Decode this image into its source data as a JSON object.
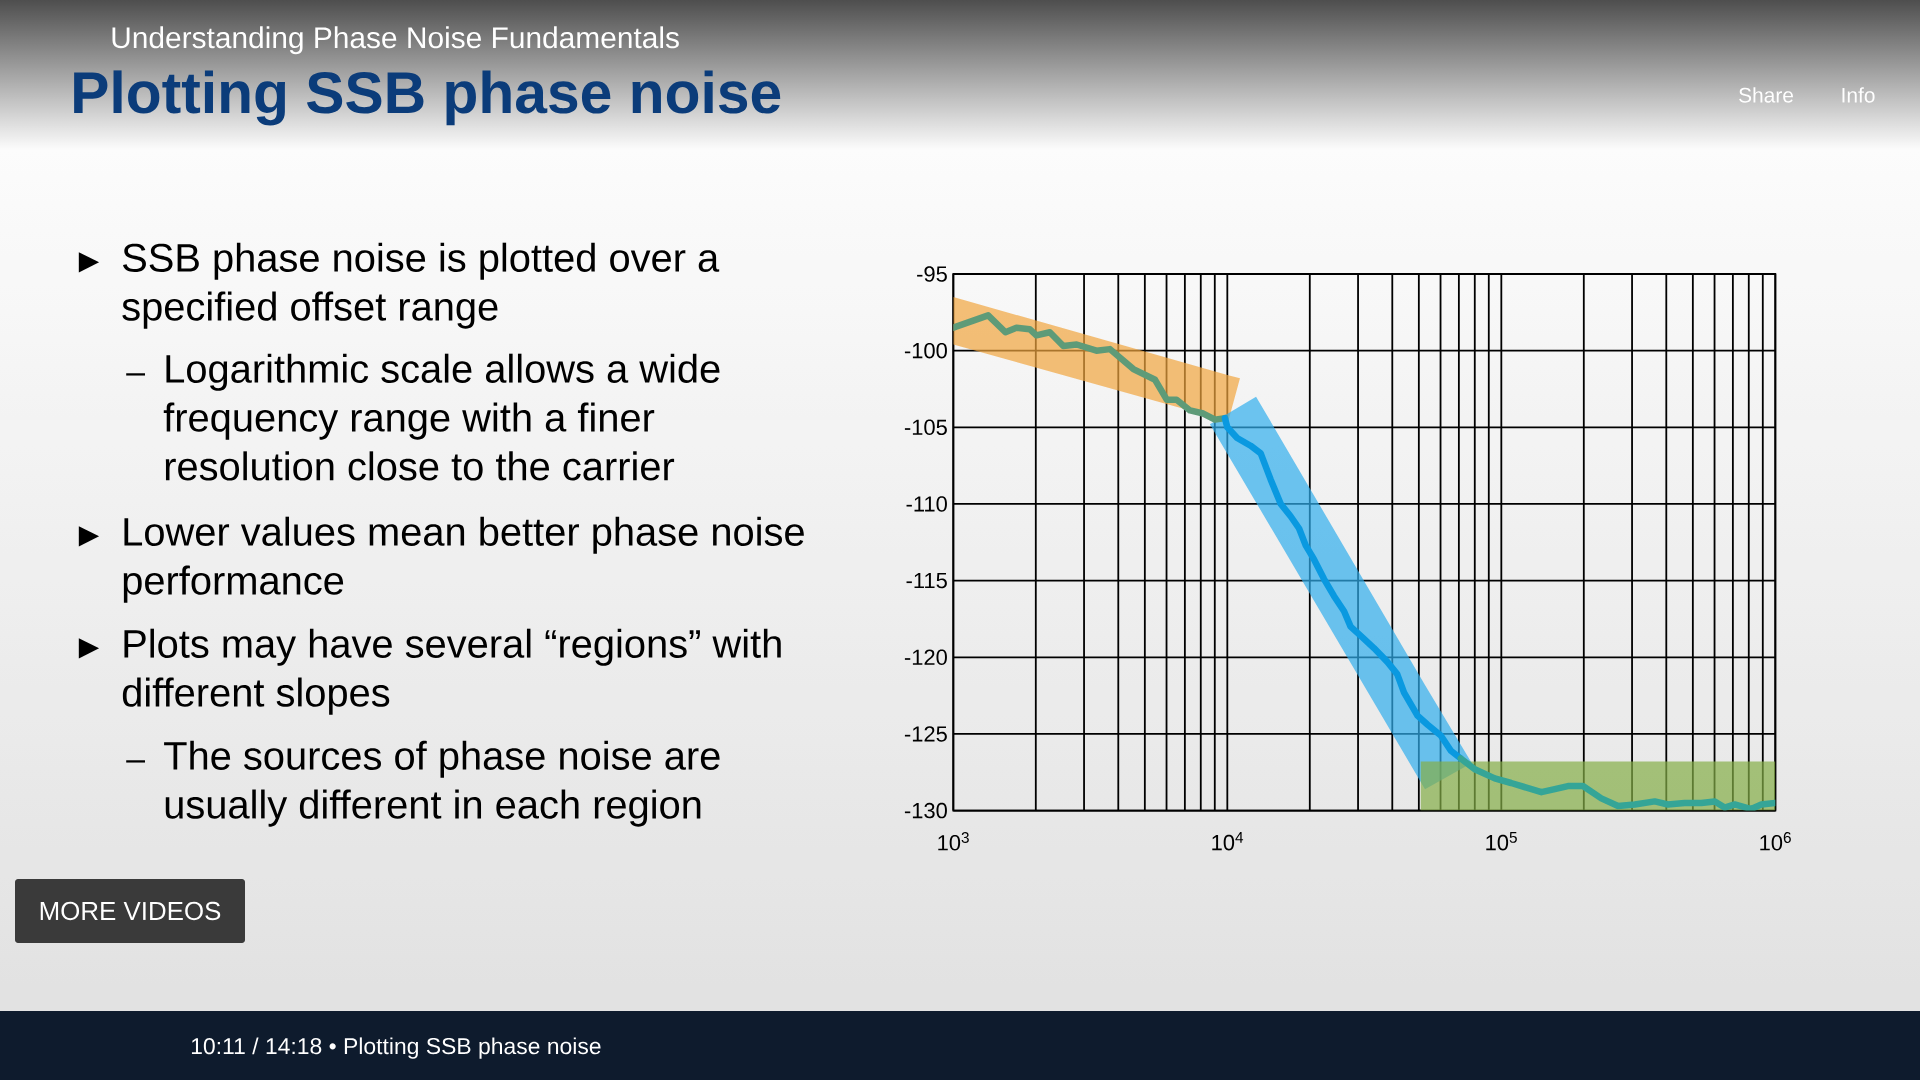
{
  "chart_data": {
    "type": "line",
    "title": "Plotting SSB phase noise",
    "subtitle": "Understanding Phase Noise Fundamentals",
    "annotations": [
      "►",
      "SSB phase noise is plotted over a specified offset range",
      "–",
      "Logarithmic scale allows a wide frequency range with a finer resolution close to the carrier",
      "►",
      "Lower values mean better phase noise performance",
      "►",
      "Plots may have several “regions” with different slopes",
      "–",
      "The sources of phase noise are usually different in each region",
      "MORE VIDEOS",
      "Share",
      "Info",
      "10:11 / 14:18 • Plotting SSB phase noise"
    ],
    "xlim": [
      1000,
      1000000
    ],
    "ylim": [
      -130,
      -95
    ],
    "xticks": [
      {
        "value": 1000,
        "label": "10$^{3}$"
      },
      {
        "value": 10000,
        "label": "10$^{4}$"
      },
      {
        "value": 100000,
        "label": "10$^{5}$"
      },
      {
        "value": 1000000,
        "label": "10$^{6}$"
      }
    ],
    "yticks": [
      -130,
      -125,
      -120,
      -115,
      -110,
      -105,
      -100,
      -95
    ],
    "log": "x",
    "grid": true,
    "series": [
      {
        "color": "#f1a53e",
        "x": [
          1000,
          10080,
          11120
        ],
        "values": [
          null,
          null,
          null
        ],
        "upper": [
          -96.5,
          -101.6,
          -101.8
        ],
        "lower": [
          -99.6,
          -104.6,
          -101.8
        ]
      },
      {
        "color": "#31aeec",
        "x": [
          8640,
          12730,
          52650,
          77980
        ],
        "values": [
          null,
          null,
          null,
          null
        ],
        "upper": [
          -104.8,
          -103.0,
          -121.8,
          -126.9
        ],
        "lower": [
          -104.8,
          -109.9,
          -128.6,
          -126.9
        ]
      },
      {
        "color": "#85ae47",
        "x": [
          50800,
          1000000
        ],
        "values": [
          null,
          null
        ],
        "upper": [
          -126.8,
          -126.8
        ],
        "lower": [
          -130,
          -130
        ]
      },
      {
        "color": "#5e9b78",
        "x": [
          1000,
          1340,
          1550,
          1700,
          1900,
          2010,
          2250,
          2520,
          2820,
          3330,
          3730,
          4540,
          5450,
          6010,
          6530,
          7310,
          8170,
          9020,
          9800
        ],
        "values": [
          -98.5,
          -97.7,
          -98.8,
          -98.5,
          -98.6,
          -99.0,
          -98.8,
          -99.7,
          -99.6,
          -100.0,
          -99.9,
          -101.2,
          -101.9,
          -103.2,
          -103.2,
          -103.9,
          -104.1,
          -104.5,
          -104.4
        ]
      },
      {
        "color": "#0a99e0",
        "x": [
          9800,
          10000,
          10860,
          12160,
          13240,
          14390,
          15670,
          17020,
          18280,
          19320,
          20700,
          22540,
          24490,
          26670,
          28180,
          31120,
          34280,
          38370,
          41690,
          44160,
          49430,
          53830,
          60120,
          65460,
          71120
        ],
        "values": [
          -104.4,
          -105.0,
          -105.7,
          -106.2,
          -106.7,
          -108.4,
          -110.0,
          -110.8,
          -111.6,
          -112.7,
          -113.6,
          -114.9,
          -116.0,
          -117.0,
          -118.0,
          -118.7,
          -119.4,
          -120.3,
          -121.1,
          -122.3,
          -123.8,
          -124.4,
          -125.1,
          -126.1,
          -126.6
        ]
      },
      {
        "color": "#35a597",
        "x": [
          71120,
          79980,
          94620,
          108600,
          140000,
          156700,
          175000,
          198600,
          231700,
          266700,
          306900,
          363100,
          405500,
          466700,
          537000,
          601200,
          653100,
          711200,
          816600,
          889200,
          995400
        ],
        "values": [
          -126.6,
          -127.3,
          -127.9,
          -128.2,
          -128.8,
          -128.6,
          -128.4,
          -128.4,
          -129.2,
          -129.7,
          -129.6,
          -129.4,
          -129.6,
          -129.5,
          -129.5,
          -129.4,
          -129.8,
          -129.6,
          -129.9,
          -129.6,
          -129.5
        ]
      }
    ]
  }
}
